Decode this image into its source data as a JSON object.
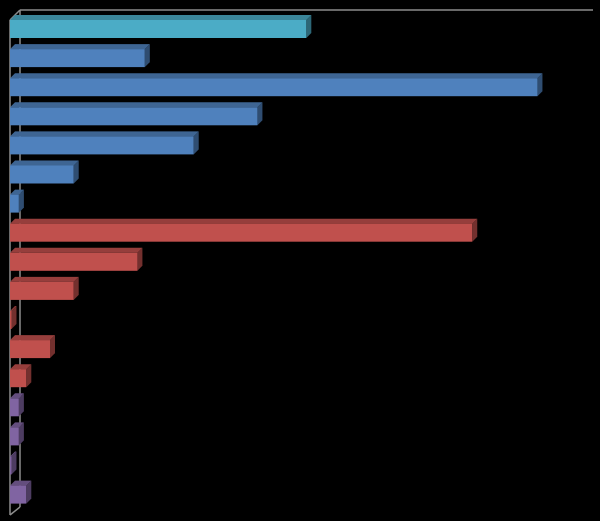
{
  "chart_data": {
    "type": "bar",
    "orientation": "horizontal",
    "style": "3d",
    "title": "",
    "xlabel": "",
    "ylabel": "",
    "grid": false,
    "legend": "none",
    "categories": [
      "",
      "",
      "",
      "",
      "",
      "",
      "",
      "",
      "",
      "",
      "",
      "",
      "",
      "",
      "",
      "",
      ""
    ],
    "values": [
      100,
      45.5,
      178,
      83.5,
      62,
      21.5,
      3,
      156,
      43,
      21.5,
      0.5,
      13.5,
      5.5,
      3,
      3,
      0.5,
      5.5
    ],
    "bar_colors": [
      "#4bacc6",
      "#4f81bd",
      "#4f81bd",
      "#4f81bd",
      "#4f81bd",
      "#4f81bd",
      "#4f81bd",
      "#c0504d",
      "#c0504d",
      "#c0504d",
      "#c0504d",
      "#c0504d",
      "#c0504d",
      "#8064a2",
      "#8064a2",
      "#8064a2",
      "#8064a2"
    ],
    "xlim": [
      0,
      190
    ]
  },
  "colors": {
    "background": "#000000",
    "axis": "#8c8c8c"
  }
}
